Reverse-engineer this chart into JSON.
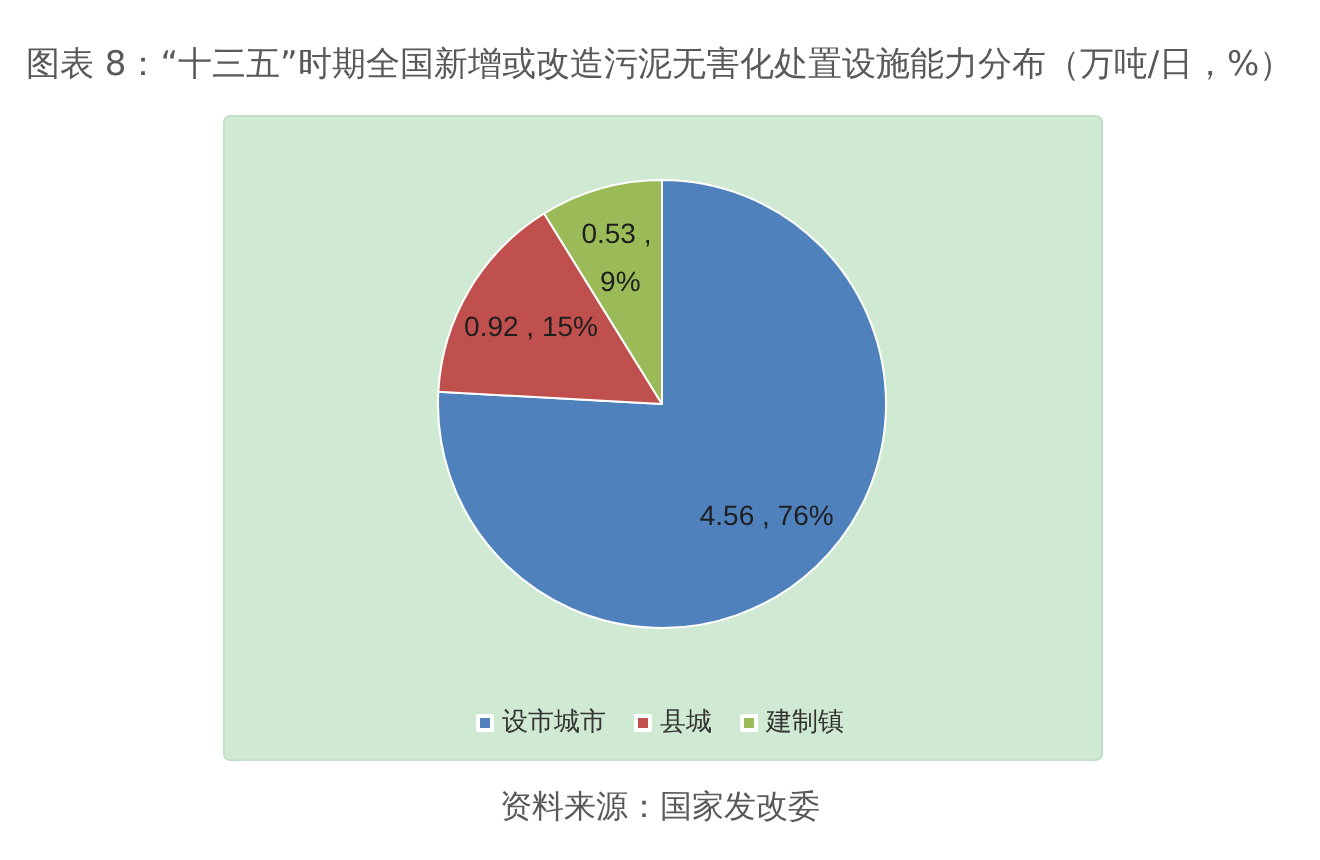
{
  "chart_data": {
    "type": "pie",
    "title": "图表 8：“十三五”时期全国新增或改造污泥无害化处置设施能力分布（万吨/日，%）",
    "categories": [
      "设市城市",
      "县城",
      "建制镇"
    ],
    "values": [
      4.56,
      0.92,
      0.53
    ],
    "colors": [
      "#4f81bd",
      "#c0504d",
      "#9bbb59"
    ],
    "value_labels": [
      "4.56 , 76%",
      "0.92 , 15%",
      "0.53 , 9%"
    ],
    "legend": "bottom",
    "annotations": [
      "资料来源：国家发改委"
    ]
  }
}
